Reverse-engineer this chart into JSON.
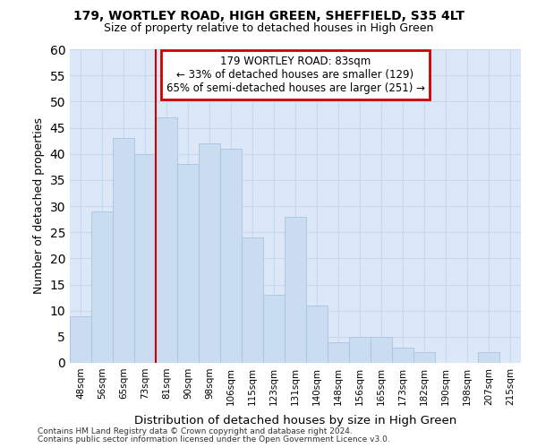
{
  "title1": "179, WORTLEY ROAD, HIGH GREEN, SHEFFIELD, S35 4LT",
  "title2": "Size of property relative to detached houses in High Green",
  "xlabel": "Distribution of detached houses by size in High Green",
  "ylabel": "Number of detached properties",
  "categories": [
    "48sqm",
    "56sqm",
    "65sqm",
    "73sqm",
    "81sqm",
    "90sqm",
    "98sqm",
    "106sqm",
    "115sqm",
    "123sqm",
    "131sqm",
    "140sqm",
    "148sqm",
    "156sqm",
    "165sqm",
    "173sqm",
    "182sqm",
    "190sqm",
    "198sqm",
    "207sqm",
    "215sqm"
  ],
  "values": [
    9,
    29,
    43,
    40,
    47,
    38,
    42,
    41,
    24,
    13,
    28,
    11,
    4,
    5,
    5,
    3,
    2,
    0,
    0,
    2,
    0
  ],
  "bar_color": "#c9dcf0",
  "bar_edge_color": "#a8c4e0",
  "vline_x": 3.5,
  "annotation_text_line1": "179 WORTLEY ROAD: 83sqm",
  "annotation_text_line2": "← 33% of detached houses are smaller (129)",
  "annotation_text_line3": "65% of semi-detached houses are larger (251) →",
  "annotation_box_facecolor": "#ffffff",
  "annotation_box_edgecolor": "#cc0000",
  "vline_color": "#cc0000",
  "grid_color": "#c8d8ec",
  "background_color": "#ffffff",
  "axes_background": "#dce8f8",
  "footer1": "Contains HM Land Registry data © Crown copyright and database right 2024.",
  "footer2": "Contains public sector information licensed under the Open Government Licence v3.0.",
  "ylim": [
    0,
    60
  ],
  "yticks": [
    0,
    5,
    10,
    15,
    20,
    25,
    30,
    35,
    40,
    45,
    50,
    55,
    60
  ]
}
